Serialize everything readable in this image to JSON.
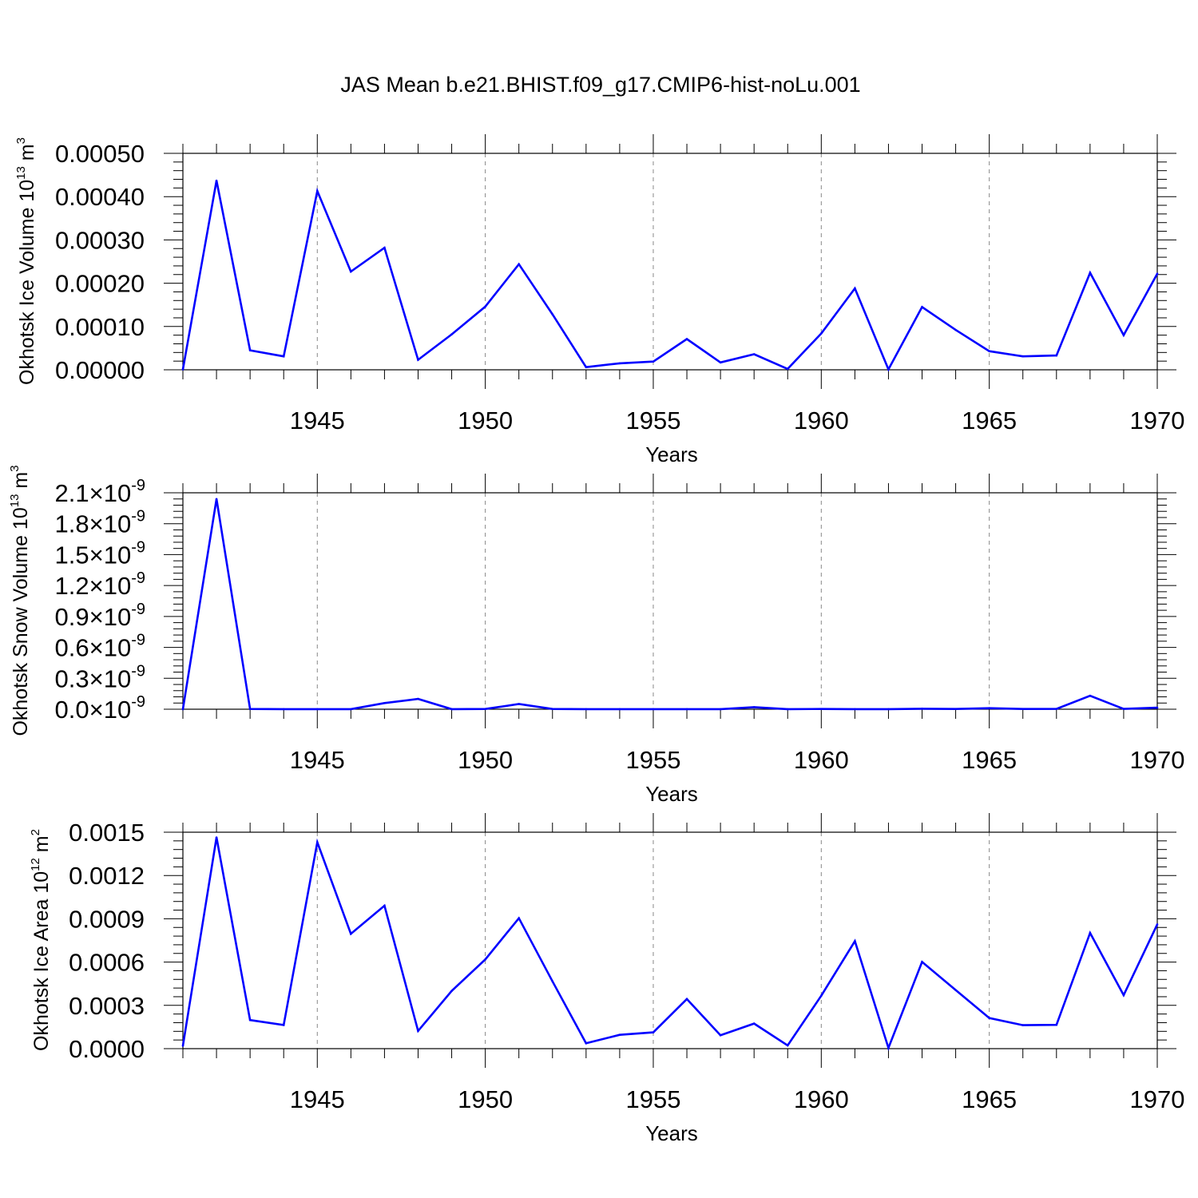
{
  "title": "JAS Mean b.e21.BHIST.f09_g17.CMIP6-hist-noLu.001",
  "colors": {
    "line": "#0000ff",
    "axis": "#000000",
    "grid": "#888888"
  },
  "chart_data": [
    {
      "type": "line",
      "ylabel_main": "Okhotsk Ice Volume 10",
      "ylabel_exp": "13",
      "ylabel_unit": " m",
      "ylabel_unit_exp": "3",
      "xlabel": "Years",
      "xlim": [
        1941,
        1970
      ],
      "ylim": [
        0,
        0.0005
      ],
      "xticks": [
        "1945",
        "1950",
        "1955",
        "1960",
        "1965",
        "1970"
      ],
      "yticks": [
        "0.00000",
        "0.00010",
        "0.00020",
        "0.00030",
        "0.00040",
        "0.00050"
      ],
      "x": [
        1941,
        1942,
        1943,
        1944,
        1945,
        1946,
        1947,
        1948,
        1949,
        1950,
        1951,
        1952,
        1953,
        1954,
        1955,
        1956,
        1957,
        1958,
        1959,
        1960,
        1961,
        1962,
        1963,
        1964,
        1965,
        1966,
        1967,
        1968,
        1969,
        1970
      ],
      "values": [
        1e-06,
        0.000437,
        4.5e-05,
        3.1e-05,
        0.000413,
        0.000227,
        0.000282,
        2.3e-05,
        8.2e-05,
        0.000146,
        0.000244,
        0.000128,
        6e-06,
        1.5e-05,
        1.9e-05,
        7.1e-05,
        1.7e-05,
        3.6e-05,
        2e-06,
        8.4e-05,
        0.000188,
        1e-06,
        0.000145,
        9.2e-05,
        4.3e-05,
        3.1e-05,
        3.3e-05,
        0.000224,
        8e-05,
        0.000222
      ]
    },
    {
      "type": "line",
      "ylabel_main": "Okhotsk Snow Volume 10",
      "ylabel_exp": "13",
      "ylabel_unit": " m",
      "ylabel_unit_exp": "3",
      "xlabel": "Years",
      "xlim": [
        1941,
        1970
      ],
      "ylim": [
        0,
        2.1
      ],
      "xticks": [
        "1945",
        "1950",
        "1955",
        "1960",
        "1965",
        "1970"
      ],
      "ytick_mantissas": [
        "0.0",
        "0.3",
        "0.6",
        "0.9",
        "1.2",
        "1.5",
        "1.8",
        "2.1"
      ],
      "ytick_times": "×10",
      "ytick_exponent": "-9",
      "x": [
        1941,
        1942,
        1943,
        1944,
        1945,
        1946,
        1947,
        1948,
        1949,
        1950,
        1951,
        1952,
        1953,
        1954,
        1955,
        1956,
        1957,
        1958,
        1959,
        1960,
        1961,
        1962,
        1963,
        1964,
        1965,
        1966,
        1967,
        1968,
        1969,
        1970
      ],
      "values": [
        0.0,
        2.04,
        0.002,
        0.001,
        0.001,
        0.001,
        0.06,
        0.1,
        0.001,
        0.002,
        0.05,
        0.002,
        0.001,
        0.001,
        0.001,
        0.001,
        0.001,
        0.02,
        0.001,
        0.002,
        0.001,
        0.001,
        0.005,
        0.002,
        0.01,
        0.002,
        0.003,
        0.13,
        0.003,
        0.015
      ]
    },
    {
      "type": "line",
      "ylabel_main": "Okhotsk Ice Area 10",
      "ylabel_exp": "12",
      "ylabel_unit": " m",
      "ylabel_unit_exp": "2",
      "xlabel": "Years",
      "xlim": [
        1941,
        1970
      ],
      "ylim": [
        0,
        0.0015
      ],
      "xticks": [
        "1945",
        "1950",
        "1955",
        "1960",
        "1965",
        "1970"
      ],
      "yticks": [
        "0.0000",
        "0.0003",
        "0.0006",
        "0.0009",
        "0.0012",
        "0.0015"
      ],
      "x": [
        1941,
        1942,
        1943,
        1944,
        1945,
        1946,
        1947,
        1948,
        1949,
        1950,
        1951,
        1952,
        1953,
        1954,
        1955,
        1956,
        1957,
        1958,
        1959,
        1960,
        1961,
        1962,
        1963,
        1964,
        1965,
        1966,
        1967,
        1968,
        1969,
        1970
      ],
      "values": [
        2e-05,
        0.001464,
        0.000198,
        0.000164,
        0.00143,
        0.000796,
        0.000991,
        0.000123,
        0.0004,
        0.000618,
        0.000904,
        0.000466,
        3.7e-05,
        9.6e-05,
        0.000113,
        0.000344,
        9.3e-05,
        0.000174,
        2.2e-05,
        0.000367,
        0.000745,
        5e-06,
        0.000601,
        0.000406,
        0.000212,
        0.000163,
        0.000165,
        0.000802,
        0.000371,
        0.000861
      ]
    }
  ]
}
